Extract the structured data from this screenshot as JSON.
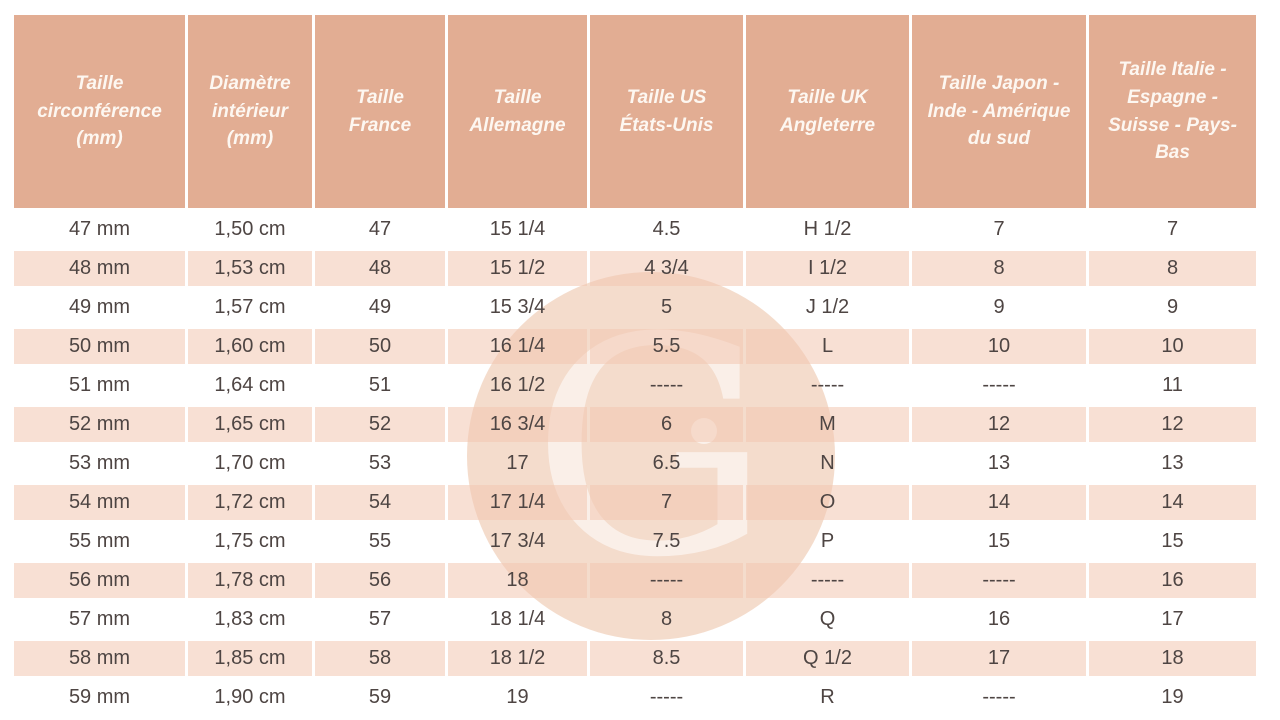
{
  "colors": {
    "header_bg": "#e2ad93",
    "header_text": "#fdf7f1",
    "text": "#4e4543",
    "row_alt_pink": "#f8e1d4",
    "row_white": "#ffffff",
    "watermark_peach": "#e9b999"
  },
  "watermark": {
    "letter": "G"
  },
  "table": {
    "headers": [
      "Taille circonférence (mm)",
      "Diamètre intérieur (mm)",
      "Taille France",
      "Taille Allemagne",
      "Taille US États-Unis",
      "Taille UK Angleterre",
      "Taille Japon - Inde - Amérique du sud",
      "Taille Italie - Espagne - Suisse - Pays-Bas"
    ],
    "rows": [
      [
        "47 mm",
        "1,50 cm",
        "47",
        "15 1/4",
        "4.5",
        "H 1/2",
        "7",
        "7"
      ],
      [
        "48 mm",
        "1,53 cm",
        "48",
        "15 1/2",
        "4 3/4",
        "I 1/2",
        "8",
        "8"
      ],
      [
        "49 mm",
        "1,57 cm",
        "49",
        "15 3/4",
        "5",
        "J 1/2",
        "9",
        "9"
      ],
      [
        "50 mm",
        "1,60 cm",
        "50",
        "16 1/4",
        "5.5",
        "L",
        "10",
        "10"
      ],
      [
        "51 mm",
        "1,64 cm",
        "51",
        "16 1/2",
        "-----",
        "-----",
        "-----",
        "11"
      ],
      [
        "52 mm",
        "1,65 cm",
        "52",
        "16 3/4",
        "6",
        "M",
        "12",
        "12"
      ],
      [
        "53 mm",
        "1,70 cm",
        "53",
        "17",
        "6.5",
        "N",
        "13",
        "13"
      ],
      [
        "54 mm",
        "1,72 cm",
        "54",
        "17 1/4",
        "7",
        "O",
        "14",
        "14"
      ],
      [
        "55 mm",
        "1,75 cm",
        "55",
        "17 3/4",
        "7.5",
        "P",
        "15",
        "15"
      ],
      [
        "56 mm",
        "1,78 cm",
        "56",
        "18",
        "-----",
        "-----",
        "-----",
        "16"
      ],
      [
        "57 mm",
        "1,83 cm",
        "57",
        "18 1/4",
        "8",
        "Q",
        "16",
        "17"
      ],
      [
        "58 mm",
        "1,85 cm",
        "58",
        "18 1/2",
        "8.5",
        "Q 1/2",
        "17",
        "18"
      ],
      [
        "59 mm",
        "1,90 cm",
        "59",
        "19",
        "-----",
        "R",
        "-----",
        "19"
      ]
    ]
  }
}
